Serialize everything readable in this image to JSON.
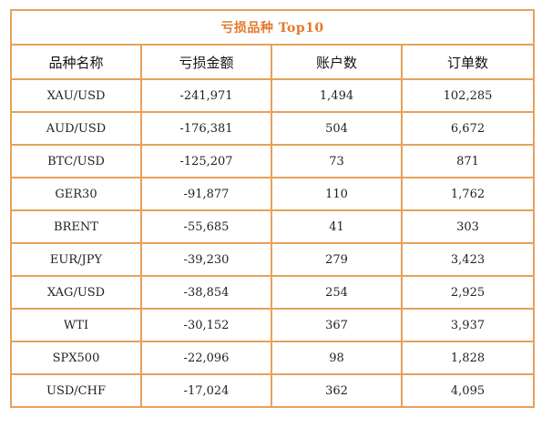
{
  "title": "亏损品种 Top10",
  "headers": [
    "品种名称",
    "亏损金额",
    "账户数",
    "订单数"
  ],
  "rows": [
    [
      "XAU/USD",
      "-241,971",
      "1,494",
      "102,285"
    ],
    [
      "AUD/USD",
      "-176,381",
      "504",
      "6,672"
    ],
    [
      "BTC/USD",
      "-125,207",
      "73",
      "871"
    ],
    [
      "GER30",
      "-91,877",
      "110",
      "1,762"
    ],
    [
      "BRENT",
      "-55,685",
      "41",
      "303"
    ],
    [
      "EUR/JPY",
      "-39,230",
      "279",
      "3,423"
    ],
    [
      "XAG/USD",
      "-38,854",
      "254",
      "2,925"
    ],
    [
      "WTI",
      "-30,152",
      "367",
      "3,937"
    ],
    [
      "SPX500",
      "-22,096",
      "98",
      "1,828"
    ],
    [
      "USD/CHF",
      "-17,024",
      "362",
      "4,095"
    ]
  ],
  "colors": {
    "border": "#E7A15A",
    "title_text": "#E27A2C"
  }
}
